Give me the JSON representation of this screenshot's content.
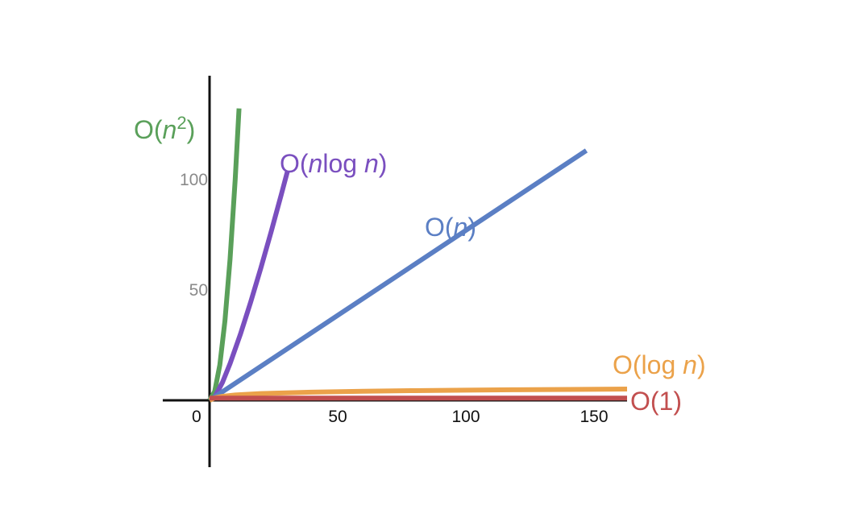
{
  "chart_data": {
    "type": "line",
    "title": "",
    "xlabel": "",
    "ylabel": "",
    "xlim": [
      -17,
      172
    ],
    "ylim": [
      -52,
      128
    ],
    "grid": false,
    "legend": "none",
    "x_ticks": [
      {
        "value": 0,
        "label": "0"
      },
      {
        "value": 50,
        "label": "50"
      },
      {
        "value": 100,
        "label": "100"
      },
      {
        "value": 150,
        "label": "150"
      }
    ],
    "y_ticks": [
      {
        "value": 50,
        "label": "50"
      },
      {
        "value": 100,
        "label": "100"
      }
    ],
    "series": [
      {
        "name": "O(n²)",
        "color": "#5aa05a",
        "label_parts": [
          {
            "text": "O(",
            "style": "normal"
          },
          {
            "text": "n",
            "style": "italic"
          },
          {
            "text": "2",
            "style": "sup"
          },
          {
            "text": ")",
            "style": "normal"
          }
        ],
        "x": [
          0,
          2,
          4,
          6,
          8,
          10,
          11.5
        ],
        "y": [
          0,
          4,
          16,
          36,
          64,
          100,
          132.25
        ]
      },
      {
        "name": "O(nlog n)",
        "color": "#7a4fbf",
        "label_parts": [
          {
            "text": "O(",
            "style": "normal"
          },
          {
            "text": "n",
            "style": "italic"
          },
          {
            "text": "log ",
            "style": "normal"
          },
          {
            "text": "n",
            "style": "italic"
          },
          {
            "text": ")",
            "style": "normal"
          }
        ],
        "x": [
          0,
          2,
          5,
          8,
          12,
          16,
          20,
          24,
          28,
          30.4
        ],
        "y": [
          0,
          1.39,
          8.05,
          16.64,
          29.82,
          44.36,
          59.91,
          76.27,
          93.3,
          103.8
        ]
      },
      {
        "name": "O(n)",
        "color": "#5b7fc4",
        "label_parts": [
          {
            "text": "O(",
            "style": "normal"
          },
          {
            "text": "n",
            "style": "italic"
          },
          {
            "text": ")",
            "style": "normal"
          }
        ],
        "x": [
          0,
          50,
          100,
          147
        ],
        "y": [
          0,
          38.5,
          77,
          113.2
        ]
      },
      {
        "name": "O(log n)",
        "color": "#eba24a",
        "label_parts": [
          {
            "text": "O(log ",
            "style": "normal"
          },
          {
            "text": "n",
            "style": "italic"
          },
          {
            "text": ")",
            "style": "normal"
          }
        ],
        "x": [
          0,
          2,
          5,
          10,
          20,
          40,
          60,
          80,
          100,
          120,
          140,
          172
        ],
        "y": [
          0,
          1.1,
          1.79,
          2.4,
          3.04,
          3.71,
          4.11,
          4.39,
          4.62,
          4.8,
          4.95,
          5.15
        ]
      },
      {
        "name": "O(1)",
        "color": "#c24f4f",
        "label_parts": [
          {
            "text": "O(1)",
            "style": "normal"
          }
        ],
        "x": [
          0,
          172
        ],
        "y": [
          1,
          1
        ]
      }
    ]
  }
}
